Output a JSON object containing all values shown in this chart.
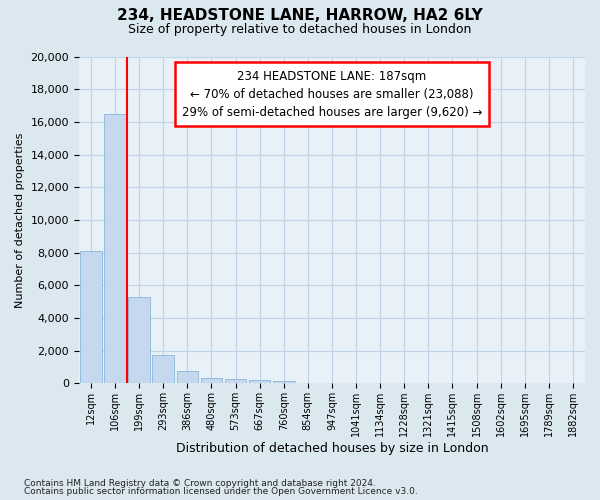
{
  "title_line1": "234, HEADSTONE LANE, HARROW, HA2 6LY",
  "title_line2": "Size of property relative to detached houses in London",
  "xlabel": "Distribution of detached houses by size in London",
  "ylabel": "Number of detached properties",
  "bar_labels": [
    "12sqm",
    "106sqm",
    "199sqm",
    "293sqm",
    "386sqm",
    "480sqm",
    "573sqm",
    "667sqm",
    "760sqm",
    "854sqm",
    "947sqm",
    "1041sqm",
    "1134sqm",
    "1228sqm",
    "1321sqm",
    "1415sqm",
    "1508sqm",
    "1602sqm",
    "1695sqm",
    "1789sqm",
    "1882sqm"
  ],
  "bar_values": [
    8100,
    16500,
    5300,
    1750,
    750,
    340,
    265,
    195,
    160,
    0,
    0,
    0,
    0,
    0,
    0,
    0,
    0,
    0,
    0,
    0,
    0
  ],
  "bar_color": "#c5d8ed",
  "bar_edge_color": "#7aadd4",
  "vline_pos": 1.5,
  "vline_color": "red",
  "annotation_line1": "234 HEADSTONE LANE: 187sqm",
  "annotation_line2": "← 70% of detached houses are smaller (23,088)",
  "annotation_line3": "29% of semi-detached houses are larger (9,620) →",
  "ylim_max": 20000,
  "yticks": [
    0,
    2000,
    4000,
    6000,
    8000,
    10000,
    12000,
    14000,
    16000,
    18000,
    20000
  ],
  "footer_line1": "Contains HM Land Registry data © Crown copyright and database right 2024.",
  "footer_line2": "Contains public sector information licensed under the Open Government Licence v3.0.",
  "fig_bg": "#dce8f0",
  "plot_bg": "#e8f0f8",
  "grid_color": "#c0d4e8"
}
